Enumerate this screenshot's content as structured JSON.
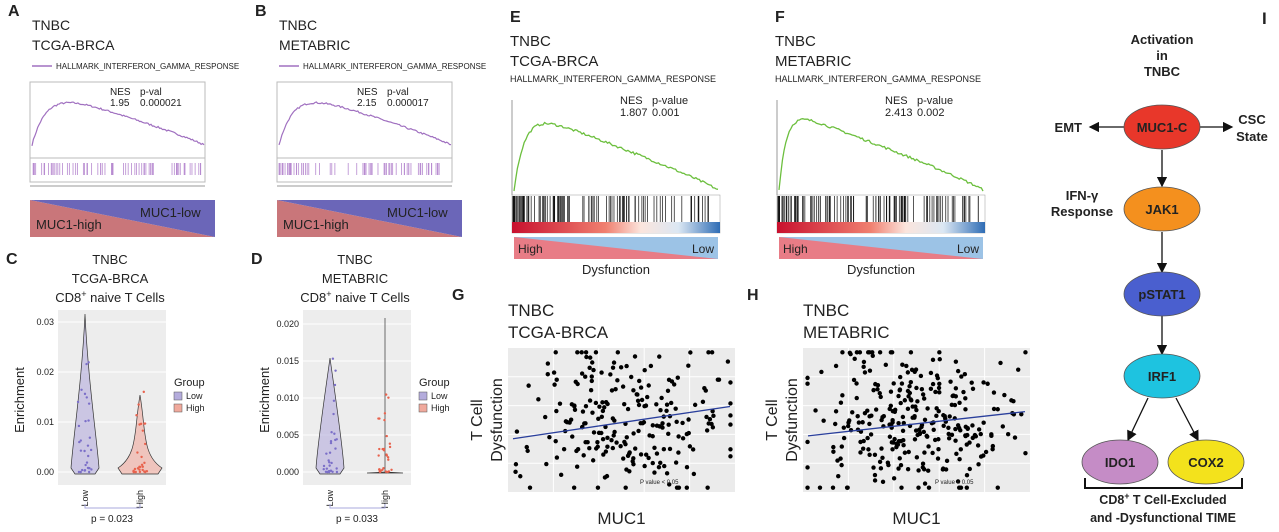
{
  "panels": {
    "A": {
      "letter": "A",
      "title": [
        "TNBC",
        "TCGA-BRCA"
      ],
      "legend": "HALLMARK_INTERFERON_GAMMA_RESPONSE",
      "nes_label": "NES",
      "nes": "1.95",
      "p_label": "p-val",
      "p": "0.000021",
      "left": "MUC1-high",
      "right": "MUC1-low"
    },
    "B": {
      "letter": "B",
      "title": [
        "TNBC",
        "METABRIC"
      ],
      "legend": "HALLMARK_INTERFERON_GAMMA_RESPONSE",
      "nes_label": "NES",
      "nes": "2.15",
      "p_label": "p-val",
      "p": "0.000017",
      "left": "MUC1-high",
      "right": "MUC1-low"
    },
    "C": {
      "letter": "C",
      "title": [
        "TNBC",
        "TCGA-BRCA"
      ],
      "cell": {
        "main": "CD8",
        "sup": "+",
        "rest": " naive T Cells"
      },
      "y_label": "Enrichment",
      "yticks": [
        "0.00",
        "0.01",
        "0.02",
        "0.03"
      ],
      "groups": [
        "Low",
        "High"
      ],
      "legend_title": "Group",
      "p": "p = 0.023"
    },
    "D": {
      "letter": "D",
      "title": [
        "TNBC",
        "METABRIC"
      ],
      "cell": {
        "main": "CD8",
        "sup": "+",
        "rest": " naive T Cells"
      },
      "y_label": "Enrichment",
      "yticks": [
        "0.000",
        "0.005",
        "0.010",
        "0.015",
        "0.020"
      ],
      "groups": [
        "Low",
        "High"
      ],
      "legend_title": "Group",
      "p": "p = 0.033"
    },
    "E": {
      "letter": "E",
      "title": [
        "TNBC",
        "TCGA-BRCA"
      ],
      "legend": "HALLMARK_INTERFERON_GAMMA_RESPONSE",
      "nes_label": "NES",
      "nes": "1.807",
      "p_label": "p-value",
      "p": "0.001",
      "left": "High",
      "right": "Low",
      "x_label": "Dysfunction"
    },
    "F": {
      "letter": "F",
      "title": [
        "TNBC",
        "METABRIC"
      ],
      "legend": "HALLMARK_INTERFERON_GAMMA_RESPONSE",
      "nes_label": "NES",
      "nes": "2.413",
      "p_label": "p-value",
      "p": "0.002",
      "left": "High",
      "right": "Low",
      "x_label": "Dysfunction"
    },
    "G": {
      "letter": "G",
      "title": [
        "TNBC",
        "TCGA-BRCA"
      ],
      "y_label": [
        "T Cell",
        "Dysfunction"
      ],
      "x_label": "MUC1",
      "note": "P value < 0.05"
    },
    "H": {
      "letter": "H",
      "title": [
        "TNBC",
        "METABRIC"
      ],
      "y_label": [
        "T Cell",
        "Dysfunction"
      ],
      "x_label": "MUC1",
      "note": "P value < 0.05"
    },
    "I": {
      "letter": "I",
      "activation": [
        "Activation",
        "in",
        "TNBC"
      ],
      "emt": "EMT",
      "muc1c": "MUC1-C",
      "csc": [
        "CSC",
        "State"
      ],
      "ifn": [
        "IFN-γ",
        "Response"
      ],
      "jak1": "JAK1",
      "pstat1": "pSTAT1",
      "irf1": "IRF1",
      "ido1": "IDO1",
      "cox2": "COX2",
      "footer": {
        "main": "CD8",
        "sup": "+",
        "rest": " T Cell-Excluded",
        "line2": "and -Dysfunctional TIME"
      }
    }
  }
}
